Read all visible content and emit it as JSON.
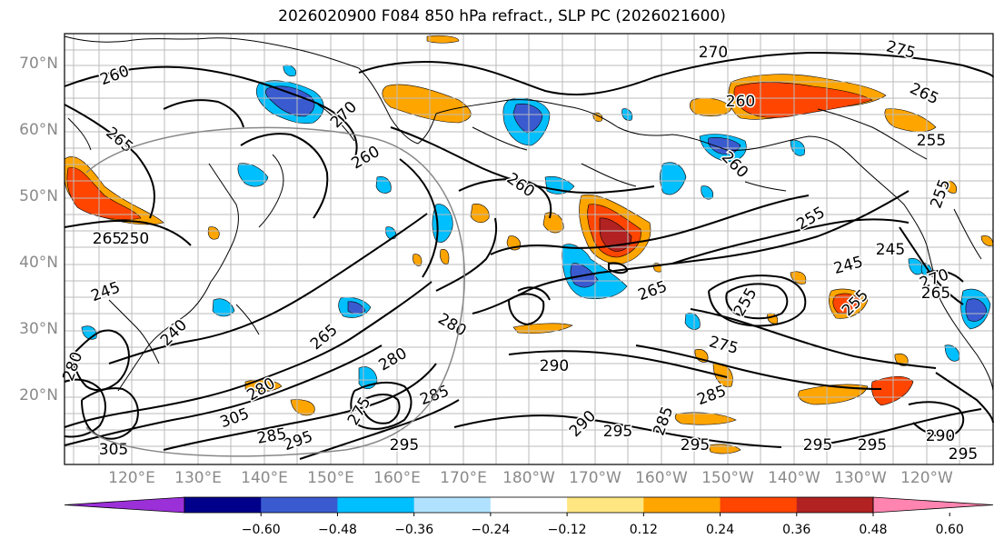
{
  "title": "2026020900 F084 850 hPa refract., SLP PC (2026021600)",
  "lat_labels": [
    "70°N",
    "60°N",
    "50°N",
    "40°N",
    "30°N",
    "20°N"
  ],
  "lon_labels": [
    "120°E",
    "130°E",
    "140°E",
    "150°E",
    "160°E",
    "170°E",
    "180°W",
    "170°W",
    "160°W",
    "150°W",
    "140°W",
    "130°W",
    "120°W"
  ],
  "colorbar": {
    "colors": [
      "#9b30d9",
      "#00008b",
      "#3a5bd0",
      "#00bfff",
      "#b0e2ff",
      "#ffffff",
      "#ffe680",
      "#ffa500",
      "#ff4500",
      "#b22222",
      "#ff85b0"
    ],
    "tick_labels": [
      "−0.60",
      "−0.48",
      "−0.36",
      "−0.24",
      "−0.12",
      "0.12",
      "0.24",
      "0.36",
      "0.48",
      "0.60"
    ]
  },
  "contour_labels": [
    "260",
    "265",
    "270",
    "270",
    "275",
    "265",
    "260",
    "260",
    "255",
    "260",
    "265",
    "250",
    "245",
    "240",
    "265",
    "280",
    "285",
    "260",
    "265",
    "280",
    "290",
    "255",
    "245",
    "245",
    "255",
    "275",
    "285",
    "270",
    "265",
    "290",
    "295",
    "295",
    "295",
    "295",
    "305",
    "295",
    "285",
    "280",
    "275",
    "295",
    "305",
    "295",
    "285",
    "290",
    "280",
    "255",
    "255"
  ]
}
